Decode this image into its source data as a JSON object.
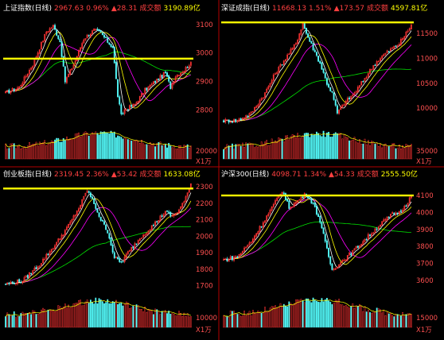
{
  "colors": {
    "background": "#000000",
    "up": "#ff3333",
    "down": "#54fcfc",
    "ma5": "#ffffff",
    "ma10": "#ffff00",
    "ma20": "#ff00ff",
    "ma60": "#00e000",
    "highlight_line": "#ffff00",
    "axis_label": "#ff5050",
    "separator": "#b40000",
    "title_name": "#ffffff",
    "title_price": "#ff4040",
    "title_turnover": "#ffff00"
  },
  "chart_data": [
    {
      "type": "candlestick",
      "title": "上证指数(日线)",
      "price": "2967.63",
      "change_pct": "0.96%",
      "change": "▲28.31",
      "turnover_label": "成交额",
      "turnover": "3190.89亿",
      "y_ticks": [
        "3100",
        "3000",
        "2900",
        "2800"
      ],
      "ylim": [
        2740,
        3130
      ],
      "volume_tick": "20000",
      "volume_unit": "X1万",
      "highlight_level": 2980,
      "start": 2860,
      "path": [
        [
          0,
          2860
        ],
        [
          8,
          2880
        ],
        [
          16,
          2960
        ],
        [
          24,
          3075
        ],
        [
          28,
          3095
        ],
        [
          32,
          3040
        ],
        [
          35,
          2900
        ],
        [
          40,
          2960
        ],
        [
          46,
          3050
        ],
        [
          52,
          3080
        ],
        [
          56,
          3070
        ],
        [
          60,
          3040
        ],
        [
          63,
          3020
        ],
        [
          66,
          2850
        ],
        [
          68,
          2780
        ],
        [
          70,
          2800
        ],
        [
          76,
          2820
        ],
        [
          82,
          2870
        ],
        [
          88,
          2900
        ],
        [
          94,
          2930
        ],
        [
          97,
          2880
        ],
        [
          100,
          2920
        ],
        [
          105,
          2940
        ],
        [
          109,
          2967
        ]
      ]
    },
    {
      "type": "candlestick",
      "title": "深证成指(日线)",
      "price": "11668.13",
      "change_pct": "1.51%",
      "change": "▲173.57",
      "turnover_label": "成交额",
      "turnover": "4597.81亿",
      "y_ticks": [
        "11500",
        "11000",
        "10500",
        "10000"
      ],
      "ylim": [
        9620,
        11850
      ],
      "volume_tick": "35000",
      "volume_unit": "X1万",
      "highlight_level": 11720,
      "start": 9750,
      "path": [
        [
          0,
          9750
        ],
        [
          8,
          9750
        ],
        [
          16,
          9900
        ],
        [
          24,
          10300
        ],
        [
          30,
          10700
        ],
        [
          36,
          11000
        ],
        [
          42,
          11300
        ],
        [
          46,
          11700
        ],
        [
          48,
          11500
        ],
        [
          52,
          11200
        ],
        [
          56,
          10900
        ],
        [
          60,
          10500
        ],
        [
          63,
          10300
        ],
        [
          66,
          9900
        ],
        [
          70,
          10100
        ],
        [
          76,
          10300
        ],
        [
          82,
          10600
        ],
        [
          88,
          10900
        ],
        [
          94,
          11100
        ],
        [
          98,
          11200
        ],
        [
          102,
          11300
        ],
        [
          106,
          11500
        ],
        [
          109,
          11668
        ]
      ]
    },
    {
      "type": "candlestick",
      "title": "创业板指(日线)",
      "price": "2319.45",
      "change_pct": "2.36%",
      "change": "▲53.42",
      "turnover_label": "成交额",
      "turnover": "1633.08亿",
      "y_ticks": [
        "2300",
        "2200",
        "2100",
        "2000",
        "1900",
        "1800",
        "1700"
      ],
      "ylim": [
        1650,
        2330
      ],
      "volume_tick": "10000",
      "volume_unit": "X1万",
      "highlight_level": 2290,
      "start": 1710,
      "path": [
        [
          0,
          1710
        ],
        [
          10,
          1730
        ],
        [
          20,
          1830
        ],
        [
          30,
          1960
        ],
        [
          38,
          2080
        ],
        [
          44,
          2190
        ],
        [
          48,
          2280
        ],
        [
          52,
          2200
        ],
        [
          56,
          2100
        ],
        [
          60,
          2030
        ],
        [
          64,
          1870
        ],
        [
          68,
          1840
        ],
        [
          72,
          1900
        ],
        [
          80,
          2000
        ],
        [
          88,
          2080
        ],
        [
          94,
          2150
        ],
        [
          98,
          2120
        ],
        [
          102,
          2160
        ],
        [
          106,
          2230
        ],
        [
          109,
          2319
        ]
      ]
    },
    {
      "type": "candlestick",
      "title": "沪深300(日线)",
      "price": "4098.71",
      "change_pct": "1.34%",
      "change": "▲54.33",
      "turnover_label": "成交额",
      "turnover": "2555.50亿",
      "y_ticks": [
        "4100",
        "4000",
        "3900",
        "3800",
        "3700",
        "3600"
      ],
      "ylim": [
        3520,
        4180
      ],
      "volume_tick": "15000",
      "volume_unit": "X1万",
      "highlight_level": 4100,
      "start": 3720,
      "path": [
        [
          0,
          3720
        ],
        [
          8,
          3740
        ],
        [
          16,
          3830
        ],
        [
          24,
          3960
        ],
        [
          30,
          4060
        ],
        [
          34,
          4130
        ],
        [
          38,
          4030
        ],
        [
          42,
          4060
        ],
        [
          48,
          4110
        ],
        [
          52,
          4050
        ],
        [
          56,
          3950
        ],
        [
          60,
          3780
        ],
        [
          63,
          3660
        ],
        [
          67,
          3700
        ],
        [
          74,
          3760
        ],
        [
          80,
          3820
        ],
        [
          86,
          3880
        ],
        [
          92,
          3940
        ],
        [
          98,
          3990
        ],
        [
          102,
          4000
        ],
        [
          106,
          4050
        ],
        [
          109,
          4098
        ]
      ]
    }
  ]
}
